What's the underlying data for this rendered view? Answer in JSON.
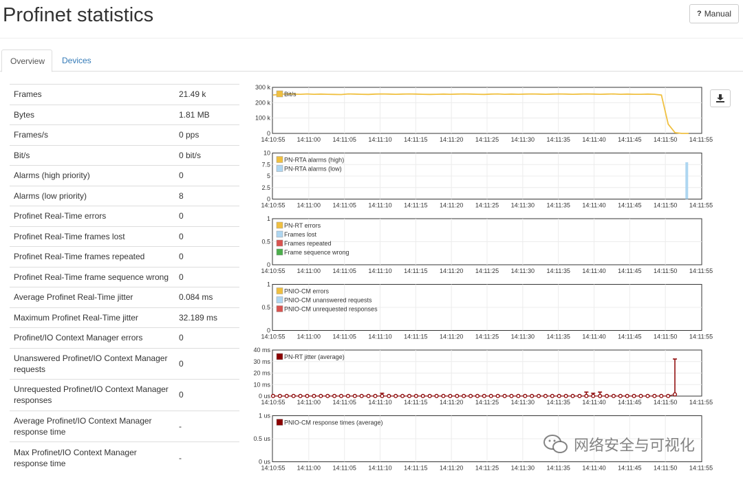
{
  "header": {
    "title": "Profinet statistics",
    "manual_label": "Manual",
    "manual_icon": "question-icon"
  },
  "tabs": [
    {
      "label": "Overview",
      "active": true
    },
    {
      "label": "Devices",
      "active": false
    }
  ],
  "stats": [
    {
      "label": "Frames",
      "value": "21.49 k"
    },
    {
      "label": "Bytes",
      "value": "1.81 MB"
    },
    {
      "label": "Frames/s",
      "value": "0 pps"
    },
    {
      "label": "Bit/s",
      "value": "0 bit/s"
    },
    {
      "label": "Alarms (high priority)",
      "value": "0"
    },
    {
      "label": "Alarms (low priority)",
      "value": "8"
    },
    {
      "label": "Profinet Real-Time errors",
      "value": "0"
    },
    {
      "label": "Profinet Real-Time frames lost",
      "value": "0"
    },
    {
      "label": "Profinet Real-Time frames repeated",
      "value": "0"
    },
    {
      "label": "Profinet Real-Time frame sequence wrong",
      "value": "0"
    },
    {
      "label": "Average Profinet Real-Time jitter",
      "value": "0.084 ms"
    },
    {
      "label": "Maximum Profinet Real-Time jitter",
      "value": "32.189 ms"
    },
    {
      "label": "Profinet/IO Context Manager errors",
      "value": "0"
    },
    {
      "label": "Unanswered Profinet/IO Context Manager requests",
      "value": "0"
    },
    {
      "label": "Unrequested Profinet/IO Context Manager responses",
      "value": "0"
    },
    {
      "label": "Average Profinet/IO Context Manager response time",
      "value": "-"
    },
    {
      "label": "Max Profinet/IO Context Manager response time",
      "value": "-"
    }
  ],
  "download_icon": "download-icon",
  "watermark": {
    "text": "网络安全与可视化",
    "icon": "wechat-icon"
  },
  "chart_data": [
    {
      "type": "line",
      "x_ticks": [
        "14:10:55",
        "14:11:00",
        "14:11:05",
        "14:11:10",
        "14:11:15",
        "14:11:20",
        "14:11:25",
        "14:11:30",
        "14:11:35",
        "14:11:40",
        "14:11:45",
        "14:11:50",
        "14:11:55"
      ],
      "y_ticks": [
        "0",
        "100 k",
        "200 k",
        "300 k"
      ],
      "ylim": [
        0,
        300000
      ],
      "series": [
        {
          "name": "Bit/s",
          "color": "#f0c040",
          "values": [
            250000,
            255000,
            257000,
            256000,
            255000,
            257000,
            255000,
            256000,
            255000,
            254000,
            253000,
            257000,
            256000,
            255000,
            254000,
            256000,
            257000,
            256000,
            255000,
            256000,
            257000,
            256000,
            255000,
            254000,
            255000,
            256000,
            255000,
            256000,
            257000,
            256000,
            255000,
            254000,
            256000,
            257000,
            255000,
            256000,
            255000,
            256000,
            257000,
            256000,
            255000,
            256000,
            257000,
            256000,
            255000,
            256000,
            257000,
            256000,
            255000,
            256000,
            257000,
            255000,
            256000,
            255000,
            255000,
            256000,
            255000,
            250000,
            60000,
            5000,
            0,
            0
          ]
        }
      ]
    },
    {
      "type": "bar",
      "x_ticks": [
        "14:10:55",
        "14:11:00",
        "14:11:05",
        "14:11:10",
        "14:11:15",
        "14:11:20",
        "14:11:25",
        "14:11:30",
        "14:11:35",
        "14:11:40",
        "14:11:45",
        "14:11:50",
        "14:11:55"
      ],
      "y_ticks": [
        "0",
        "2.5",
        "5",
        "7.5",
        "10"
      ],
      "ylim": [
        0,
        10
      ],
      "series": [
        {
          "name": "PN-RTA alarms (high)",
          "color": "#f0c040",
          "values": []
        },
        {
          "name": "PN-RTA alarms (low)",
          "color": "#aed6f1",
          "values": [
            {
              "t": "14:11:53",
              "v": 8
            }
          ]
        }
      ]
    },
    {
      "type": "bar",
      "x_ticks": [
        "14:10:55",
        "14:11:00",
        "14:11:05",
        "14:11:10",
        "14:11:15",
        "14:11:20",
        "14:11:25",
        "14:11:30",
        "14:11:35",
        "14:11:40",
        "14:11:45",
        "14:11:50",
        "14:11:55"
      ],
      "y_ticks": [
        "0",
        "0.5",
        "1"
      ],
      "ylim": [
        0,
        1
      ],
      "series": [
        {
          "name": "PN-RT errors",
          "color": "#f0c040",
          "values": []
        },
        {
          "name": "Frames lost",
          "color": "#aed6f1",
          "values": []
        },
        {
          "name": "Frames repeated",
          "color": "#d9534f",
          "values": []
        },
        {
          "name": "Frame sequence wrong",
          "color": "#4cae4c",
          "values": []
        }
      ]
    },
    {
      "type": "bar",
      "x_ticks": [
        "14:10:55",
        "14:11:00",
        "14:11:05",
        "14:11:10",
        "14:11:15",
        "14:11:20",
        "14:11:25",
        "14:11:30",
        "14:11:35",
        "14:11:40",
        "14:11:45",
        "14:11:50",
        "14:11:55"
      ],
      "y_ticks": [
        "0",
        "0.5",
        "1"
      ],
      "ylim": [
        0,
        1
      ],
      "series": [
        {
          "name": "PNIO-CM errors",
          "color": "#f0c040",
          "values": []
        },
        {
          "name": "PNIO-CM unanswered requests",
          "color": "#aed6f1",
          "values": []
        },
        {
          "name": "PNIO-CM unrequested responses",
          "color": "#d9534f",
          "values": []
        }
      ]
    },
    {
      "type": "scatter",
      "x_ticks": [
        "14:10:55",
        "14:11:00",
        "14:11:05",
        "14:11:10",
        "14:11:15",
        "14:11:20",
        "14:11:25",
        "14:11:30",
        "14:11:35",
        "14:11:40",
        "14:11:45",
        "14:11:50",
        "14:11:55"
      ],
      "y_ticks": [
        "0 us",
        "10 ms",
        "20 ms",
        "30 ms",
        "40 ms"
      ],
      "ylim": [
        0,
        40
      ],
      "series": [
        {
          "name": "PN-RT jitter (average)",
          "color": "#8b0000",
          "values": [
            0.1,
            0.1,
            0.1,
            0.1,
            0.1,
            0.1,
            0.1,
            0.1,
            0.1,
            0.1,
            0.1,
            0.1,
            0.1,
            0.1,
            0.1,
            0.1,
            0.1,
            0.1,
            0.1,
            0.1,
            0.1,
            0.1,
            0.1,
            0.1,
            0.1,
            0.1,
            0.1,
            0.1,
            0.1,
            0.1,
            0.1,
            0.1,
            0.1,
            0.1,
            0.1,
            0.1,
            0.1,
            0.1,
            0.1,
            0.1,
            0.1,
            0.1,
            0.1,
            0.1,
            0.1,
            0.1,
            0.1,
            0.1,
            0.1,
            0.1,
            0.1,
            0.1,
            0.1,
            0.1,
            0.1,
            0.1,
            0.1,
            0.1,
            0.1,
            1.5
          ],
          "max": [
            {
              "i": 16,
              "v": 2.5
            },
            {
              "i": 46,
              "v": 3.5
            },
            {
              "i": 47,
              "v": 2.5
            },
            {
              "i": 48,
              "v": 3.5
            },
            {
              "i": 59,
              "v": 32.2
            }
          ]
        }
      ]
    },
    {
      "type": "line",
      "x_ticks": [
        "14:10:55",
        "14:11:00",
        "14:11:05",
        "14:11:10",
        "14:11:15",
        "14:11:20",
        "14:11:25",
        "14:11:30",
        "14:11:35",
        "14:11:40",
        "14:11:45",
        "14:11:50",
        "14:11:55"
      ],
      "y_ticks": [
        "0 us",
        "0.5 us",
        "1 us"
      ],
      "ylim": [
        0,
        1
      ],
      "series": [
        {
          "name": "PNIO-CM response times (average)",
          "color": "#8b0000",
          "values": []
        }
      ]
    }
  ]
}
